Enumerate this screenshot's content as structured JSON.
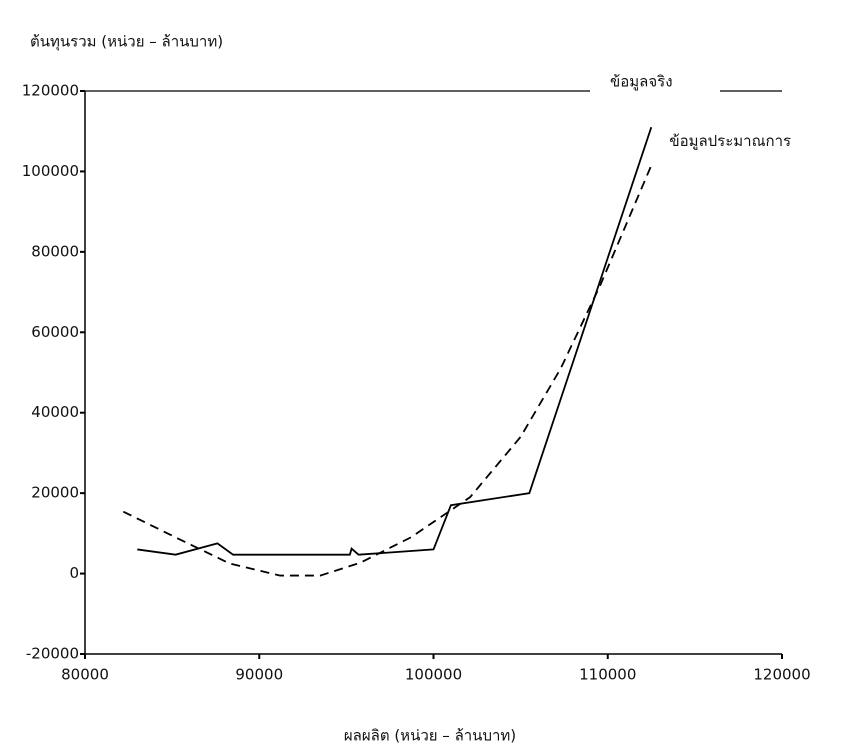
{
  "chart_data": {
    "type": "line",
    "y_label": "ต้นทุนรวม  (หน่วย – ล้านบาท)",
    "x_label": "ผลผลิต  (หน่วย – ล้านบาท)",
    "xlim": [
      80000,
      120000
    ],
    "xticks": [
      80000,
      90000,
      100000,
      110000,
      120000
    ],
    "ylim": [
      -20000,
      120000
    ],
    "yticks": [
      -20000,
      0,
      20000,
      40000,
      60000,
      80000,
      100000,
      120000
    ],
    "series": [
      {
        "name": "ข้อมูลจริง",
        "color": "#000000",
        "dashed": false,
        "x": [
          83000,
          85200,
          87600,
          88500,
          95200,
          95300,
          95700,
          100000,
          101000,
          105500,
          112500
        ],
        "values": [
          6000,
          4700,
          7500,
          4700,
          4700,
          6200,
          4700,
          6000,
          17000,
          20000,
          111000
        ]
      },
      {
        "name": "ข้อมูลประมาณการ",
        "color": "#000000",
        "dashed": true,
        "x": [
          82200,
          85200,
          88300,
          91200,
          93500,
          95800,
          98700,
          102100,
          105000,
          107300,
          109600,
          112500
        ],
        "values": [
          15400,
          9000,
          2500,
          -500,
          -500,
          2700,
          9000,
          19000,
          34000,
          51000,
          72000,
          101500
        ]
      }
    ]
  }
}
